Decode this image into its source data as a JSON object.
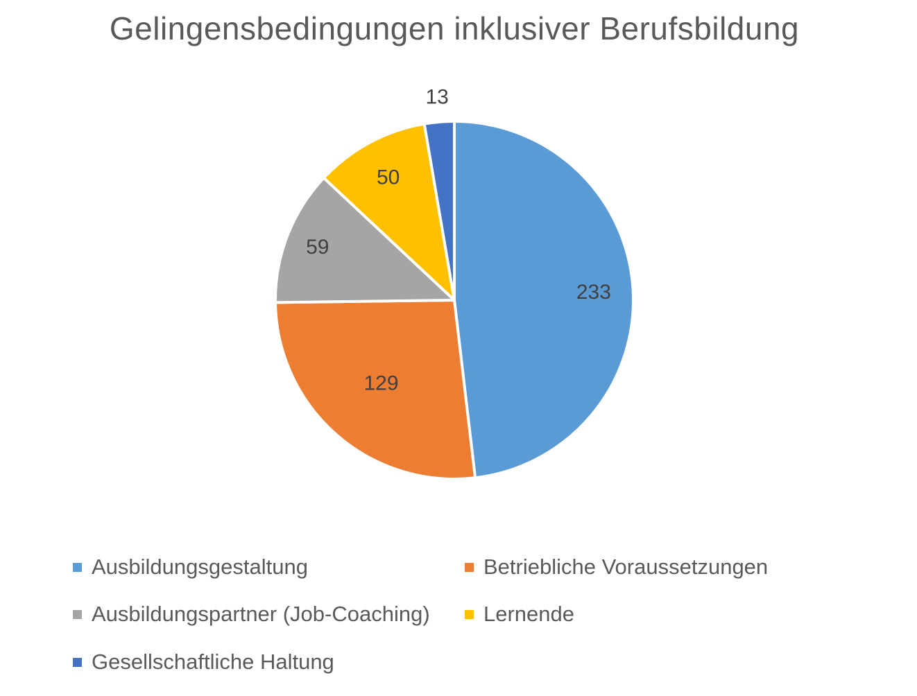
{
  "chart_data": {
    "type": "pie",
    "title": "Gelingensbedingungen inklusiver Berufsbildung",
    "categories": [
      "Ausbildungsgestaltung",
      "Betriebliche Voraussetzungen",
      "Ausbildungspartner (Job-Coaching)",
      "Lernende",
      "Gesellschaftliche Haltung"
    ],
    "values": [
      233,
      129,
      59,
      50,
      13
    ],
    "colors": [
      "#5B9BD5",
      "#ED7D31",
      "#A5A5A5",
      "#FFC000",
      "#4472C4"
    ],
    "data_labels": [
      "233",
      "129",
      "59",
      "50",
      "13"
    ],
    "start_angle": "12 o'clock",
    "direction": "clockwise",
    "legend_position": "bottom"
  }
}
